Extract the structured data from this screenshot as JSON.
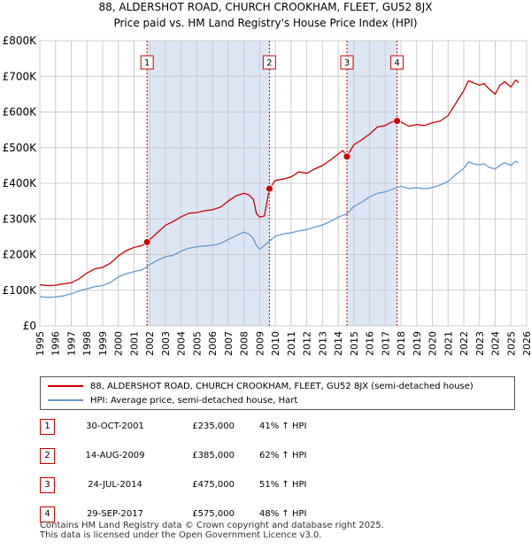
{
  "title_line1": "88, ALDERSHOT ROAD, CHURCH CROOKHAM, FLEET, GU52 8JX",
  "title_line2": "Price paid vs. HM Land Registry's House Price Index (HPI)",
  "colors": {
    "property": "#cc0000",
    "hpi": "#6699cc",
    "shade": "#dde6f5",
    "grid": "#cccccc"
  },
  "chart_data": {
    "type": "line",
    "title": "Price paid vs. HM Land Registry's House Price Index (HPI)",
    "xlim": [
      1995,
      2026
    ],
    "ylim": [
      0,
      800000
    ],
    "x_ticks": [
      "1995",
      "1996",
      "1997",
      "1998",
      "1999",
      "2000",
      "2001",
      "2002",
      "2003",
      "2004",
      "2005",
      "2006",
      "2007",
      "2008",
      "2009",
      "2010",
      "2011",
      "2012",
      "2013",
      "2014",
      "2015",
      "2016",
      "2017",
      "2018",
      "2019",
      "2020",
      "2021",
      "2022",
      "2023",
      "2024",
      "2025",
      "2026"
    ],
    "y_ticks": [
      {
        "value": 0,
        "label": "£0"
      },
      {
        "value": 100000,
        "label": "£100K"
      },
      {
        "value": 200000,
        "label": "£200K"
      },
      {
        "value": 300000,
        "label": "£300K"
      },
      {
        "value": 400000,
        "label": "£400K"
      },
      {
        "value": 500000,
        "label": "£500K"
      },
      {
        "value": 600000,
        "label": "£600K"
      },
      {
        "value": 700000,
        "label": "£700K"
      },
      {
        "value": 800000,
        "label": "£800K"
      }
    ],
    "shaded_ranges": [
      [
        2001.83,
        2009.62
      ],
      [
        2014.56,
        2017.75
      ]
    ],
    "series": [
      {
        "name": "88, ALDERSHOT ROAD, CHURCH CROOKHAM, FLEET, GU52 8JX (semi-detached house)",
        "color": "#cc0000",
        "points": [
          [
            1995,
            115000
          ],
          [
            1995.5,
            113000
          ],
          [
            1996,
            114000
          ],
          [
            1996.5,
            118000
          ],
          [
            1997,
            121000
          ],
          [
            1997.5,
            132000
          ],
          [
            1998,
            148000
          ],
          [
            1998.5,
            160000
          ],
          [
            1999,
            164000
          ],
          [
            1999.5,
            176000
          ],
          [
            2000,
            196000
          ],
          [
            2000.5,
            211000
          ],
          [
            2001,
            220000
          ],
          [
            2001.5,
            225000
          ],
          [
            2001.83,
            235000
          ],
          [
            2002,
            242000
          ],
          [
            2002.5,
            262000
          ],
          [
            2003,
            282000
          ],
          [
            2003.5,
            293000
          ],
          [
            2004,
            306000
          ],
          [
            2004.5,
            316000
          ],
          [
            2005,
            318000
          ],
          [
            2005.5,
            323000
          ],
          [
            2006,
            326000
          ],
          [
            2006.5,
            333000
          ],
          [
            2007,
            350000
          ],
          [
            2007.5,
            365000
          ],
          [
            2008,
            372000
          ],
          [
            2008.3,
            368000
          ],
          [
            2008.6,
            355000
          ],
          [
            2008.8,
            315000
          ],
          [
            2009,
            305000
          ],
          [
            2009.3,
            308000
          ],
          [
            2009.62,
            385000
          ],
          [
            2010,
            408000
          ],
          [
            2010.5,
            412000
          ],
          [
            2011,
            418000
          ],
          [
            2011.5,
            432000
          ],
          [
            2012,
            428000
          ],
          [
            2012.5,
            440000
          ],
          [
            2013,
            450000
          ],
          [
            2013.5,
            465000
          ],
          [
            2014,
            482000
          ],
          [
            2014.3,
            492000
          ],
          [
            2014.56,
            475000
          ],
          [
            2015,
            508000
          ],
          [
            2015.5,
            522000
          ],
          [
            2016,
            538000
          ],
          [
            2016.5,
            558000
          ],
          [
            2017,
            562000
          ],
          [
            2017.4,
            572000
          ],
          [
            2017.75,
            575000
          ],
          [
            2018,
            572000
          ],
          [
            2018.5,
            560000
          ],
          [
            2019,
            565000
          ],
          [
            2019.5,
            562000
          ],
          [
            2020,
            570000
          ],
          [
            2020.5,
            575000
          ],
          [
            2021,
            590000
          ],
          [
            2021.5,
            625000
          ],
          [
            2022,
            660000
          ],
          [
            2022.3,
            688000
          ],
          [
            2022.6,
            682000
          ],
          [
            2023,
            675000
          ],
          [
            2023.3,
            680000
          ],
          [
            2023.6,
            665000
          ],
          [
            2024,
            650000
          ],
          [
            2024.3,
            675000
          ],
          [
            2024.6,
            685000
          ],
          [
            2025,
            670000
          ],
          [
            2025.3,
            690000
          ],
          [
            2025.5,
            683000
          ]
        ]
      },
      {
        "name": "HPI: Average price, semi-detached house, Hart",
        "color": "#6699cc",
        "points": [
          [
            1995,
            82000
          ],
          [
            1995.5,
            80000
          ],
          [
            1996,
            81000
          ],
          [
            1996.5,
            84000
          ],
          [
            1997,
            90000
          ],
          [
            1997.5,
            98000
          ],
          [
            1998,
            104000
          ],
          [
            1998.5,
            110000
          ],
          [
            1999,
            113000
          ],
          [
            1999.5,
            122000
          ],
          [
            2000,
            137000
          ],
          [
            2000.5,
            146000
          ],
          [
            2001,
            152000
          ],
          [
            2001.5,
            157000
          ],
          [
            2001.83,
            166000
          ],
          [
            2002,
            172000
          ],
          [
            2002.5,
            184000
          ],
          [
            2003,
            194000
          ],
          [
            2003.5,
            198000
          ],
          [
            2004,
            210000
          ],
          [
            2004.5,
            218000
          ],
          [
            2005,
            222000
          ],
          [
            2005.5,
            224000
          ],
          [
            2006,
            226000
          ],
          [
            2006.5,
            231000
          ],
          [
            2007,
            242000
          ],
          [
            2007.5,
            253000
          ],
          [
            2008,
            263000
          ],
          [
            2008.3,
            258000
          ],
          [
            2008.6,
            245000
          ],
          [
            2008.8,
            225000
          ],
          [
            2009,
            215000
          ],
          [
            2009.3,
            225000
          ],
          [
            2009.62,
            238000
          ],
          [
            2010,
            252000
          ],
          [
            2010.5,
            258000
          ],
          [
            2011,
            261000
          ],
          [
            2011.5,
            266000
          ],
          [
            2012,
            270000
          ],
          [
            2012.5,
            277000
          ],
          [
            2013,
            283000
          ],
          [
            2013.5,
            293000
          ],
          [
            2014,
            305000
          ],
          [
            2014.56,
            314000
          ],
          [
            2015,
            335000
          ],
          [
            2015.5,
            347000
          ],
          [
            2016,
            362000
          ],
          [
            2016.5,
            372000
          ],
          [
            2017,
            376000
          ],
          [
            2017.75,
            388000
          ],
          [
            2018,
            392000
          ],
          [
            2018.5,
            385000
          ],
          [
            2019,
            388000
          ],
          [
            2019.5,
            384000
          ],
          [
            2020,
            388000
          ],
          [
            2020.5,
            395000
          ],
          [
            2021,
            405000
          ],
          [
            2021.5,
            425000
          ],
          [
            2022,
            442000
          ],
          [
            2022.3,
            460000
          ],
          [
            2022.6,
            455000
          ],
          [
            2023,
            452000
          ],
          [
            2023.3,
            455000
          ],
          [
            2023.6,
            445000
          ],
          [
            2024,
            440000
          ],
          [
            2024.3,
            450000
          ],
          [
            2024.6,
            458000
          ],
          [
            2025,
            450000
          ],
          [
            2025.3,
            462000
          ],
          [
            2025.5,
            458000
          ]
        ]
      }
    ],
    "sales": [
      {
        "num": "1",
        "x": 2001.83,
        "value": 235000
      },
      {
        "num": "2",
        "x": 2009.62,
        "value": 385000
      },
      {
        "num": "3",
        "x": 2014.56,
        "value": 475000
      },
      {
        "num": "4",
        "x": 2017.75,
        "value": 575000
      }
    ]
  },
  "legend": {
    "property_label": "88, ALDERSHOT ROAD, CHURCH CROOKHAM, FLEET, GU52 8JX (semi-detached house)",
    "hpi_label": "HPI: Average price, semi-detached house, Hart"
  },
  "sales_table": [
    {
      "num": "1",
      "date": "30-OCT-2001",
      "price": "£235,000",
      "hpi": "41% ↑ HPI"
    },
    {
      "num": "2",
      "date": "14-AUG-2009",
      "price": "£385,000",
      "hpi": "62% ↑ HPI"
    },
    {
      "num": "3",
      "date": "24-JUL-2014",
      "price": "£475,000",
      "hpi": "51% ↑ HPI"
    },
    {
      "num": "4",
      "date": "29-SEP-2017",
      "price": "£575,000",
      "hpi": "48% ↑ HPI"
    }
  ],
  "footer": {
    "line1": "Contains HM Land Registry data © Crown copyright and database right 2025.",
    "line2": "This data is licensed under the Open Government Licence v3.0."
  }
}
